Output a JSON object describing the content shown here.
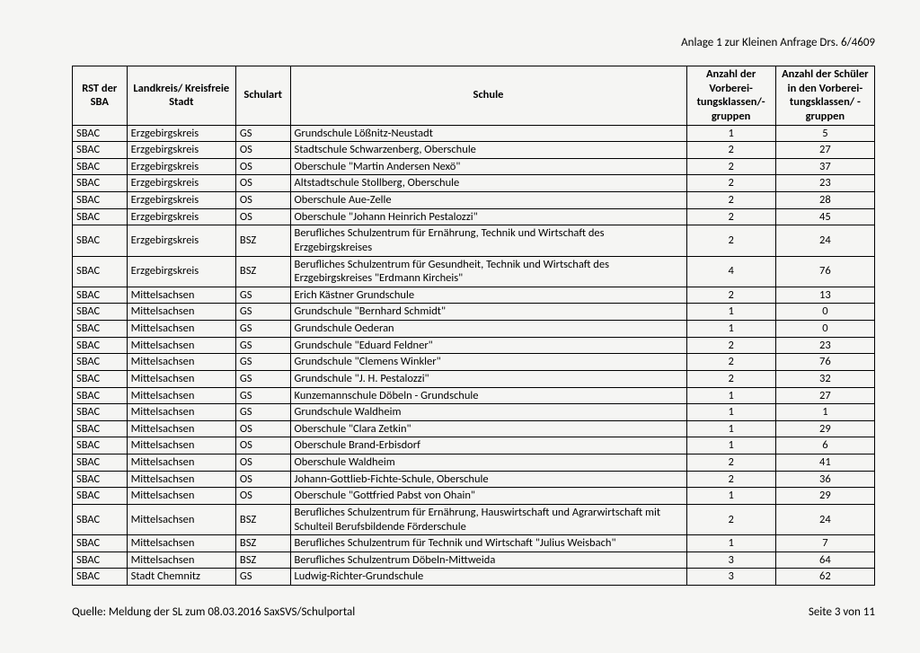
{
  "header_note": "Anlage 1 zur Kleinen Anfrage Drs. 6/4609",
  "columns": [
    "RST der SBA",
    "Landkreis/ Kreisfreie Stadt",
    "Schulart",
    "Schule",
    "Anzahl der Vorberei-tungsklassen/-gruppen",
    "Anzahl der Schüler in den Vorberei-tungsklassen/ -gruppen"
  ],
  "rows": [
    [
      "SBAC",
      "Erzgebirgskreis",
      "GS",
      "Grundschule Lößnitz-Neustadt",
      "1",
      "5"
    ],
    [
      "SBAC",
      "Erzgebirgskreis",
      "OS",
      "Stadtschule Schwarzenberg, Oberschule",
      "2",
      "27"
    ],
    [
      "SBAC",
      "Erzgebirgskreis",
      "OS",
      "Oberschule \"Martin Andersen Nexö\"",
      "2",
      "37"
    ],
    [
      "SBAC",
      "Erzgebirgskreis",
      "OS",
      "Altstadtschule Stollberg, Oberschule",
      "2",
      "23"
    ],
    [
      "SBAC",
      "Erzgebirgskreis",
      "OS",
      "Oberschule Aue-Zelle",
      "2",
      "28"
    ],
    [
      "SBAC",
      "Erzgebirgskreis",
      "OS",
      "Oberschule \"Johann Heinrich Pestalozzi\"",
      "2",
      "45"
    ],
    [
      "SBAC",
      "Erzgebirgskreis",
      "BSZ",
      "Berufliches Schulzentrum für Ernährung, Technik und Wirtschaft des Erzgebirgskreises",
      "2",
      "24"
    ],
    [
      "SBAC",
      "Erzgebirgskreis",
      "BSZ",
      "Berufliches Schulzentrum für Gesundheit, Technik und Wirtschaft des Erzgebirgskreises \"Erdmann Kircheis\"",
      "4",
      "76"
    ],
    [
      "SBAC",
      "Mittelsachsen",
      "GS",
      "Erich Kästner Grundschule",
      "2",
      "13"
    ],
    [
      "SBAC",
      "Mittelsachsen",
      "GS",
      "Grundschule \"Bernhard Schmidt\"",
      "1",
      "0"
    ],
    [
      "SBAC",
      "Mittelsachsen",
      "GS",
      "Grundschule Oederan",
      "1",
      "0"
    ],
    [
      "SBAC",
      "Mittelsachsen",
      "GS",
      "Grundschule \"Eduard Feldner\"",
      "2",
      "23"
    ],
    [
      "SBAC",
      "Mittelsachsen",
      "GS",
      "Grundschule \"Clemens Winkler\"",
      "2",
      "76"
    ],
    [
      "SBAC",
      "Mittelsachsen",
      "GS",
      "Grundschule \"J. H. Pestalozzi\"",
      "2",
      "32"
    ],
    [
      "SBAC",
      "Mittelsachsen",
      "GS",
      "Kunzemannschule Döbeln - Grundschule",
      "1",
      "27"
    ],
    [
      "SBAC",
      "Mittelsachsen",
      "GS",
      "Grundschule Waldheim",
      "1",
      "1"
    ],
    [
      "SBAC",
      "Mittelsachsen",
      "OS",
      "Oberschule \"Clara Zetkin\"",
      "1",
      "29"
    ],
    [
      "SBAC",
      "Mittelsachsen",
      "OS",
      "Oberschule Brand-Erbisdorf",
      "1",
      "6"
    ],
    [
      "SBAC",
      "Mittelsachsen",
      "OS",
      "Oberschule Waldheim",
      "2",
      "41"
    ],
    [
      "SBAC",
      "Mittelsachsen",
      "OS",
      "Johann-Gottlieb-Fichte-Schule, Oberschule",
      "2",
      "36"
    ],
    [
      "SBAC",
      "Mittelsachsen",
      "OS",
      "Oberschule \"Gottfried Pabst von Ohain\"",
      "1",
      "29"
    ],
    [
      "SBAC",
      "Mittelsachsen",
      "BSZ",
      "Berufliches Schulzentrum für Ernährung, Hauswirtschaft und Agrarwirtschaft mit Schulteil Berufsbildende Förderschule",
      "2",
      "24"
    ],
    [
      "SBAC",
      "Mittelsachsen",
      "BSZ",
      "Berufliches Schulzentrum für Technik und Wirtschaft \"Julius Weisbach\"",
      "1",
      "7"
    ],
    [
      "SBAC",
      "Mittelsachsen",
      "BSZ",
      "Berufliches Schulzentrum Döbeln-Mittweida",
      "3",
      "64"
    ],
    [
      "SBAC",
      "Stadt Chemnitz",
      "GS",
      "Ludwig-Richter-Grundschule",
      "3",
      "62"
    ]
  ],
  "footer_left": "Quelle: Meldung der SL zum 08.03.2016 SaxSVS/Schulportal",
  "footer_right": "Seite 3 von 11"
}
